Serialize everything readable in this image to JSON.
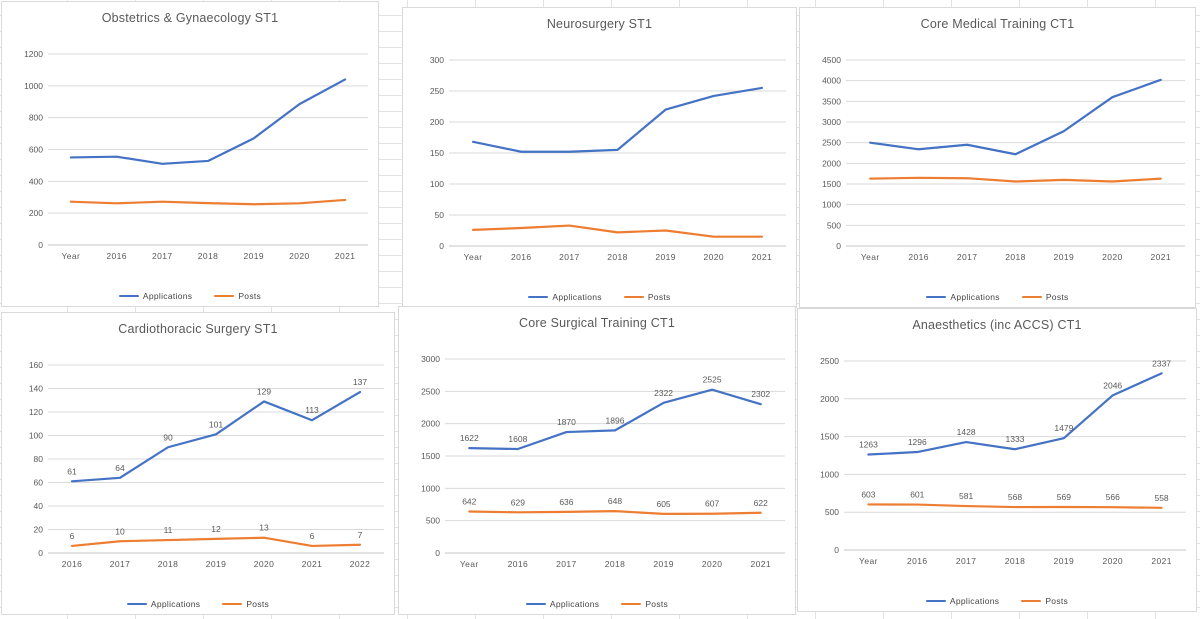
{
  "colors": {
    "applications_series": "#4472C4",
    "posts_series": "#ED7D31",
    "gridline": "#d9d9d9",
    "axis_line": "#c6c6c6",
    "axis_text": "#595959",
    "title_text": "#595959",
    "data_label_text": "#595959",
    "panel_border": "#d9d9d9"
  },
  "chart_data": [
    {
      "type": "line",
      "title": "Obstetrics & Gynaecology ST1",
      "categories": [
        "Year",
        "2016",
        "2017",
        "2018",
        "2019",
        "2020",
        "2021"
      ],
      "series": [
        {
          "name": "Applications",
          "color": "#4472C4",
          "values": [
            550,
            555,
            510,
            528,
            670,
            885,
            1040
          ]
        },
        {
          "name": "Posts",
          "color": "#ED7D31",
          "values": [
            272,
            262,
            272,
            263,
            256,
            262,
            283
          ]
        }
      ],
      "ylim": [
        0,
        1200
      ],
      "ytick_step": 200,
      "grid": true,
      "legend_position": "bottom",
      "data_labels": false
    },
    {
      "type": "line",
      "title": "Neurosurgery ST1",
      "categories": [
        "Year",
        "2016",
        "2017",
        "2018",
        "2019",
        "2020",
        "2021"
      ],
      "series": [
        {
          "name": "Applications",
          "color": "#4472C4",
          "values": [
            168,
            152,
            152,
            155,
            220,
            242,
            255
          ]
        },
        {
          "name": "Posts",
          "color": "#ED7D31",
          "values": [
            26,
            29,
            33,
            22,
            25,
            15,
            15
          ]
        }
      ],
      "ylim": [
        0,
        300
      ],
      "ytick_step": 50,
      "grid": true,
      "legend_position": "bottom",
      "data_labels": false
    },
    {
      "type": "line",
      "title": "Core Medical Training CT1",
      "categories": [
        "Year",
        "2016",
        "2017",
        "2018",
        "2019",
        "2020",
        "2021"
      ],
      "series": [
        {
          "name": "Applications",
          "color": "#4472C4",
          "values": [
            2500,
            2340,
            2450,
            2220,
            2780,
            3600,
            4020
          ]
        },
        {
          "name": "Posts",
          "color": "#ED7D31",
          "values": [
            1630,
            1650,
            1640,
            1560,
            1600,
            1560,
            1630
          ]
        }
      ],
      "ylim": [
        0,
        4500
      ],
      "ytick_step": 500,
      "grid": true,
      "legend_position": "bottom",
      "data_labels": false
    },
    {
      "type": "line",
      "title": "Cardiothoracic Surgery ST1",
      "categories": [
        "2016",
        "2017",
        "2018",
        "2019",
        "2020",
        "2021",
        "2022"
      ],
      "series": [
        {
          "name": "Applications",
          "color": "#4472C4",
          "values": [
            61,
            64,
            90,
            101,
            129,
            113,
            137
          ]
        },
        {
          "name": "Posts",
          "color": "#ED7D31",
          "values": [
            6,
            10,
            11,
            12,
            13,
            6,
            7
          ]
        }
      ],
      "ylim": [
        0,
        160
      ],
      "ytick_step": 20,
      "grid": true,
      "legend_position": "bottom",
      "data_labels": true
    },
    {
      "type": "line",
      "title": "Core Surgical Training CT1",
      "categories": [
        "Year",
        "2016",
        "2017",
        "2018",
        "2019",
        "2020",
        "2021"
      ],
      "series": [
        {
          "name": "Applications",
          "color": "#4472C4",
          "values": [
            1622,
            1608,
            1870,
            1896,
            2322,
            2525,
            2302
          ]
        },
        {
          "name": "Posts",
          "color": "#ED7D31",
          "values": [
            642,
            629,
            636,
            648,
            605,
            607,
            622
          ]
        }
      ],
      "ylim": [
        0,
        3000
      ],
      "ytick_step": 500,
      "grid": true,
      "legend_position": "bottom",
      "data_labels": true
    },
    {
      "type": "line",
      "title": "Anaesthetics (inc ACCS) CT1",
      "categories": [
        "Year",
        "2016",
        "2017",
        "2018",
        "2019",
        "2020",
        "2021"
      ],
      "series": [
        {
          "name": "Applications",
          "color": "#4472C4",
          "values": [
            1263,
            1296,
            1428,
            1333,
            1479,
            2046,
            2337
          ]
        },
        {
          "name": "Posts",
          "color": "#ED7D31",
          "values": [
            603,
            601,
            581,
            568,
            569,
            566,
            558
          ]
        }
      ],
      "ylim": [
        0,
        2500
      ],
      "ytick_step": 500,
      "grid": true,
      "legend_position": "bottom",
      "data_labels": true
    }
  ]
}
